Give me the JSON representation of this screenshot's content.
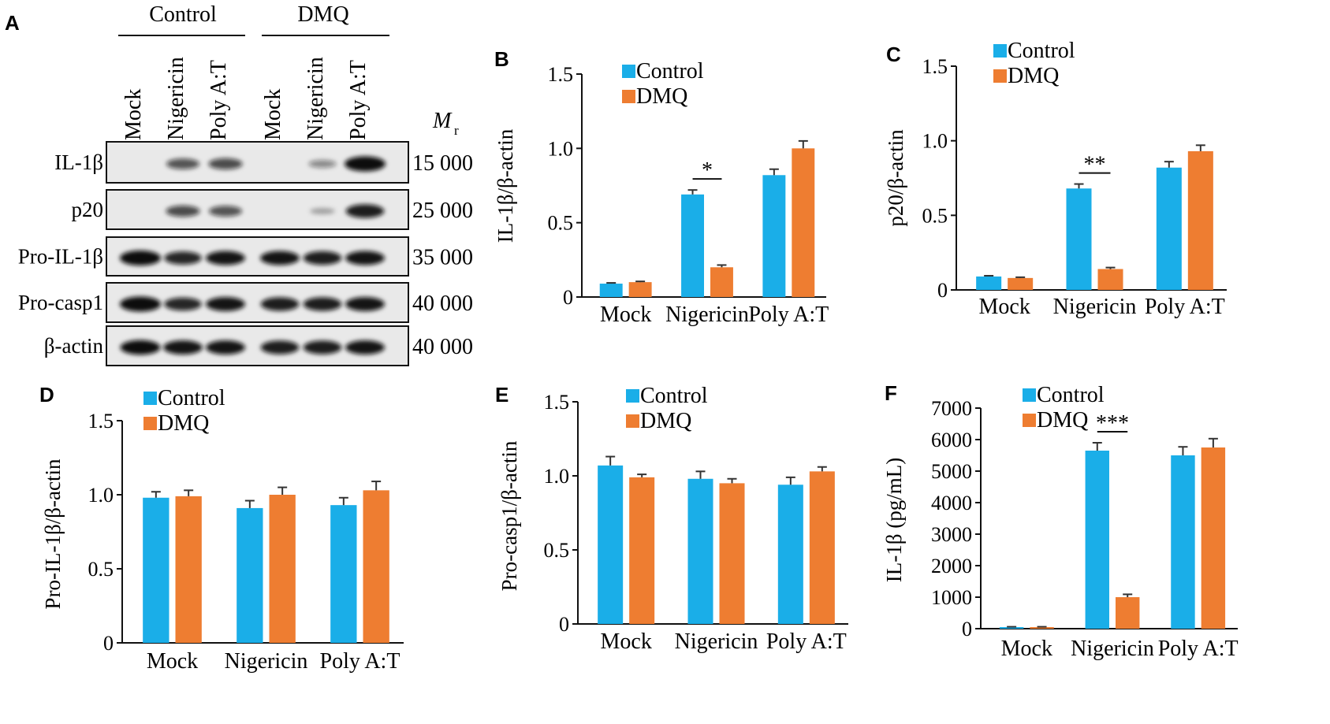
{
  "colors": {
    "control": "#1aaee8",
    "dmq": "#ee7d31",
    "axis": "#111111",
    "blot_bg": "#e9e9e9",
    "band": "#111111"
  },
  "blot": {
    "panel_label": "A",
    "groups": [
      "Control",
      "DMQ"
    ],
    "lanes": [
      "Mock",
      "Nigericin",
      "Poly A:T",
      "Mock",
      "Nigericin",
      "Poly A:T"
    ],
    "mr_label_main": "M",
    "mr_label_sub": "r",
    "rows": [
      {
        "label": "IL-1β",
        "mw": "15 000",
        "intensities": [
          0.0,
          0.55,
          0.6,
          0.0,
          0.25,
          1.0
        ]
      },
      {
        "label": "p20",
        "mw": "25 000",
        "intensities": [
          0.0,
          0.6,
          0.55,
          0.0,
          0.08,
          0.85
        ]
      },
      {
        "label": "Pro-IL-1β",
        "mw": "35 000",
        "intensities": [
          1.0,
          0.8,
          0.9,
          0.9,
          0.85,
          0.9
        ]
      },
      {
        "label": "Pro-casp1",
        "mw": "40 000",
        "intensities": [
          1.0,
          0.8,
          0.9,
          0.85,
          0.85,
          0.9
        ]
      },
      {
        "label": "β-actin",
        "mw": "40 000",
        "intensities": [
          0.95,
          0.9,
          0.9,
          0.85,
          0.85,
          0.9
        ]
      }
    ]
  },
  "chart_data": [
    {
      "id": "B",
      "type": "bar",
      "panel_label": "B",
      "categories": [
        "Mock",
        "Nigericin",
        "Poly A:T"
      ],
      "ylabel": "IL-1β/β-actin",
      "ylim": [
        0,
        1.5
      ],
      "yticks": [
        "0",
        "0.5",
        "1.0",
        "1.5"
      ],
      "ytick_values": [
        0,
        0.5,
        1.0,
        1.5
      ],
      "legend": "top-left",
      "series": [
        {
          "name": "Control",
          "values": [
            0.09,
            0.69,
            0.82
          ],
          "errors": [
            0.005,
            0.03,
            0.04
          ]
        },
        {
          "name": "DMQ",
          "values": [
            0.1,
            0.2,
            1.0
          ],
          "errors": [
            0.005,
            0.015,
            0.05
          ]
        }
      ],
      "significance": [
        {
          "category": "Nigericin",
          "label": "*"
        }
      ]
    },
    {
      "id": "C",
      "type": "bar",
      "panel_label": "C",
      "categories": [
        "Mock",
        "Nigericin",
        "Poly A:T"
      ],
      "ylabel": "p20/β-actin",
      "ylim": [
        0,
        1.5
      ],
      "yticks": [
        "0",
        "0.5",
        "1.0",
        "1.5"
      ],
      "ytick_values": [
        0,
        0.5,
        1.0,
        1.5
      ],
      "legend": "top-left",
      "series": [
        {
          "name": "Control",
          "values": [
            0.09,
            0.68,
            0.82
          ],
          "errors": [
            0.005,
            0.03,
            0.04
          ]
        },
        {
          "name": "DMQ",
          "values": [
            0.08,
            0.14,
            0.93
          ],
          "errors": [
            0.005,
            0.01,
            0.04
          ]
        }
      ],
      "significance": [
        {
          "category": "Nigericin",
          "label": "**"
        }
      ]
    },
    {
      "id": "D",
      "type": "bar",
      "panel_label": "D",
      "categories": [
        "Mock",
        "Nigericin",
        "Poly A:T"
      ],
      "ylabel": "Pro-IL-1β/β-actin",
      "ylim": [
        0,
        1.5
      ],
      "yticks": [
        "0",
        "0.5",
        "1.0",
        "1.5"
      ],
      "ytick_values": [
        0,
        0.5,
        1.0,
        1.5
      ],
      "legend": "top-left",
      "series": [
        {
          "name": "Control",
          "values": [
            0.98,
            0.91,
            0.93
          ],
          "errors": [
            0.04,
            0.05,
            0.05
          ]
        },
        {
          "name": "DMQ",
          "values": [
            0.99,
            1.0,
            1.03
          ],
          "errors": [
            0.04,
            0.05,
            0.06
          ]
        }
      ],
      "significance": []
    },
    {
      "id": "E",
      "type": "bar",
      "panel_label": "E",
      "categories": [
        "Mock",
        "Nigericin",
        "Poly A:T"
      ],
      "ylabel": "Pro-casp1/β-actin",
      "ylim": [
        0,
        1.5
      ],
      "yticks": [
        "0",
        "0.5",
        "1.0",
        "1.5"
      ],
      "ytick_values": [
        0,
        0.5,
        1.0,
        1.5
      ],
      "legend": "top-left",
      "series": [
        {
          "name": "Control",
          "values": [
            1.07,
            0.98,
            0.94
          ],
          "errors": [
            0.06,
            0.05,
            0.05
          ]
        },
        {
          "name": "DMQ",
          "values": [
            0.99,
            0.95,
            1.03
          ],
          "errors": [
            0.02,
            0.03,
            0.03
          ]
        }
      ],
      "significance": []
    },
    {
      "id": "F",
      "type": "bar",
      "panel_label": "F",
      "categories": [
        "Mock",
        "Nigericin",
        "Poly A:T"
      ],
      "ylabel": "IL-1β (pg/mL)",
      "ylim": [
        0,
        7000
      ],
      "yticks": [
        "0",
        "1000",
        "2000",
        "3000",
        "4000",
        "5000",
        "6000",
        "7000"
      ],
      "ytick_values": [
        0,
        1000,
        2000,
        3000,
        4000,
        5000,
        6000,
        7000
      ],
      "legend": "top-left",
      "series": [
        {
          "name": "Control",
          "values": [
            50,
            5650,
            5500
          ],
          "errors": [
            10,
            250,
            270
          ]
        },
        {
          "name": "DMQ",
          "values": [
            50,
            1000,
            5750
          ],
          "errors": [
            10,
            90,
            280
          ]
        }
      ],
      "significance": [
        {
          "category": "Nigericin",
          "label": "***"
        }
      ]
    }
  ]
}
